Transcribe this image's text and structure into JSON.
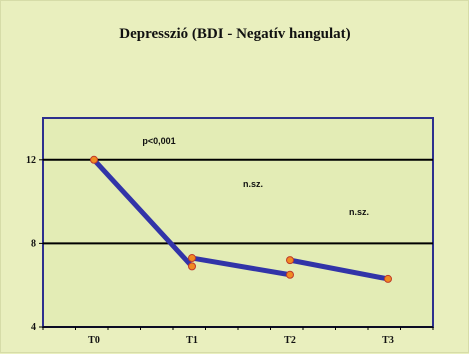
{
  "chart_data": {
    "type": "line",
    "title": "Depresszió (BDI - Negatív hangulat)",
    "categories": [
      "T0",
      "T1",
      "T2",
      "T3"
    ],
    "ylim": [
      4,
      14
    ],
    "yticks": [
      4,
      8,
      12
    ],
    "series": [
      {
        "name": "",
        "points": [
          [
            "T0",
            12.0
          ],
          [
            "T1",
            6.9
          ]
        ]
      },
      {
        "name": "",
        "points": [
          [
            "T1",
            7.3
          ],
          [
            "T2",
            6.5
          ]
        ]
      },
      {
        "name": "",
        "points": [
          [
            "T2",
            7.2
          ],
          [
            "T3",
            6.3
          ]
        ]
      }
    ],
    "annotations": [
      {
        "text": "p<0,001",
        "category": "T0-T1"
      },
      {
        "text": "n.sz.",
        "category": "T1-T2"
      },
      {
        "text": "n.sz.",
        "category": "T2-T3"
      }
    ],
    "gridlines": [
      8,
      12
    ],
    "grid": true
  },
  "colors": {
    "background": "#e9efbe",
    "plot_area": "#e3ecb5",
    "plot_border": "#2d2f8e",
    "line": "#3234a8",
    "marker_fill": "#f08a22",
    "marker_stroke": "#c0392b",
    "gridline": "#000000"
  }
}
